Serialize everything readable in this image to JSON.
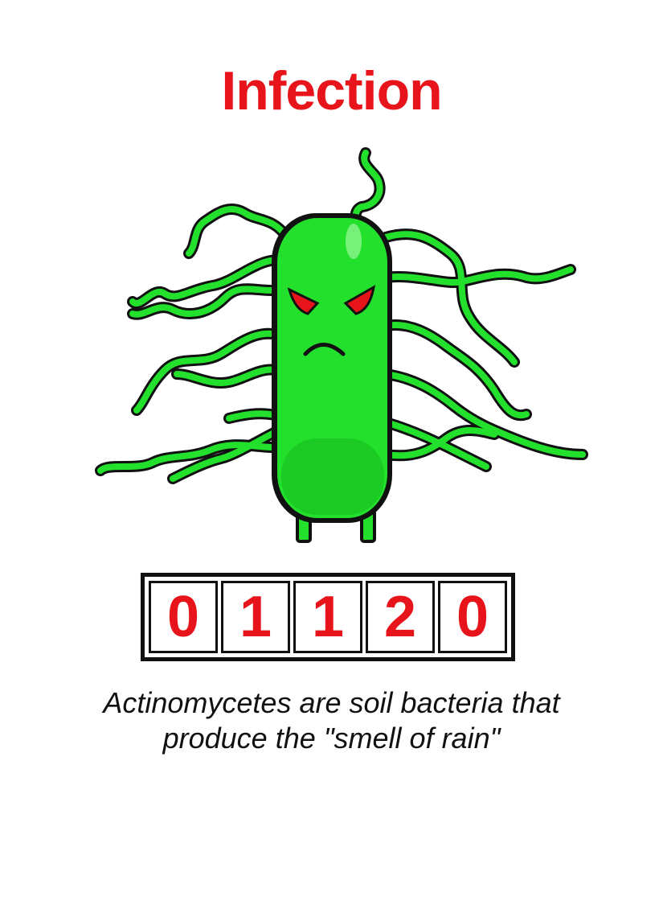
{
  "card": {
    "title": "Infection",
    "title_color": "#e8141b",
    "illustration": "angry-green-bacterium-with-flagella",
    "body_color": "#22e02b",
    "eye_color": "#e8141b",
    "counter": {
      "digits": [
        "0",
        "1",
        "1",
        "2",
        "0"
      ],
      "digit_color": "#e8141b"
    },
    "caption_lines": [
      "Actinomycetes are soil bacteria that",
      "produce the \"smell of rain\""
    ]
  }
}
